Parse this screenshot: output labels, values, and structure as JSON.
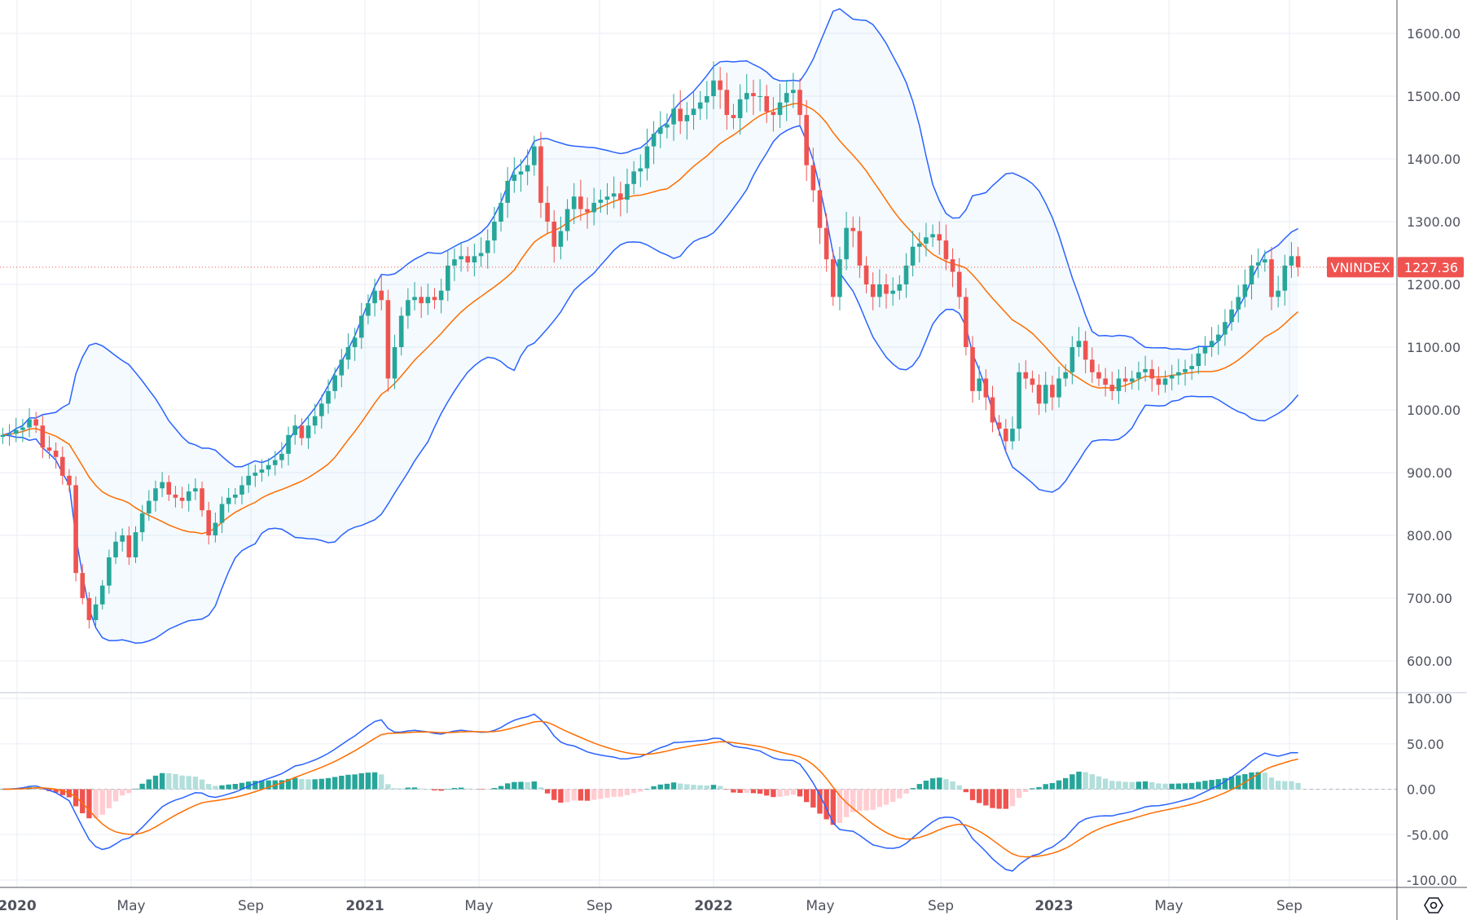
{
  "chart_data": [
    {
      "type": "candlestick",
      "symbol": "VNINDEX",
      "interval": "weekly",
      "last_price": "1227.36",
      "ylim": [
        560,
        1640
      ],
      "y_ticks": [
        "1600.00",
        "1500.00",
        "1400.00",
        "1300.00",
        "1200.00",
        "1100.00",
        "1000.00",
        "900.00",
        "800.00",
        "700.00",
        "600.00"
      ],
      "x_ticks": [
        "2020",
        "May",
        "Sep",
        "2021",
        "May",
        "Sep",
        "2022",
        "May",
        "Sep",
        "2023",
        "May",
        "Sep"
      ],
      "grid": true,
      "indicators": [
        "Bollinger Bands (20, 2)"
      ],
      "close": [
        960,
        962,
        968,
        972,
        985,
        975,
        940,
        935,
        925,
        895,
        880,
        740,
        700,
        665,
        690,
        720,
        765,
        790,
        800,
        765,
        805,
        835,
        855,
        875,
        885,
        865,
        860,
        855,
        870,
        875,
        840,
        800,
        820,
        850,
        860,
        865,
        880,
        895,
        900,
        905,
        912,
        920,
        930,
        960,
        975,
        955,
        975,
        990,
        1010,
        1030,
        1055,
        1080,
        1100,
        1115,
        1150,
        1170,
        1190,
        1175,
        1050,
        1100,
        1150,
        1175,
        1180,
        1170,
        1180,
        1175,
        1190,
        1230,
        1240,
        1245,
        1235,
        1245,
        1250,
        1270,
        1300,
        1330,
        1365,
        1375,
        1380,
        1390,
        1420,
        1330,
        1300,
        1260,
        1285,
        1320,
        1340,
        1320,
        1315,
        1330,
        1335,
        1340,
        1345,
        1335,
        1360,
        1380,
        1385,
        1420,
        1440,
        1450,
        1455,
        1480,
        1460,
        1470,
        1480,
        1490,
        1500,
        1525,
        1510,
        1470,
        1465,
        1495,
        1505,
        1500,
        1500,
        1475,
        1470,
        1490,
        1505,
        1510,
        1470,
        1390,
        1350,
        1290,
        1240,
        1180,
        1240,
        1290,
        1285,
        1230,
        1200,
        1180,
        1200,
        1185,
        1190,
        1200,
        1230,
        1260,
        1265,
        1275,
        1280,
        1270,
        1240,
        1220,
        1180,
        1100,
        1030,
        1050,
        1020,
        980,
        970,
        950,
        970,
        1060,
        1050,
        1040,
        1010,
        1040,
        1020,
        1050,
        1060,
        1100,
        1110,
        1080,
        1060,
        1050,
        1040,
        1030,
        1050,
        1045,
        1050,
        1060,
        1065,
        1050,
        1040,
        1050,
        1055,
        1060,
        1065,
        1070,
        1090,
        1100,
        1110,
        1120,
        1140,
        1160,
        1180,
        1200,
        1230,
        1235,
        1240,
        1180,
        1190,
        1230,
        1245,
        1227.36
      ],
      "colors": {
        "up": "#26a69a",
        "down": "#ef5350",
        "bands": "#2962ff",
        "basis": "#ff6d00",
        "band_fill": "#2196f3"
      }
    },
    {
      "type": "macd",
      "parameters": "12, 26, 9",
      "ylim": [
        -110,
        110
      ],
      "y_ticks": [
        "100.00",
        "50.00",
        "0.00",
        "-50.00",
        "-100.00"
      ],
      "colors": {
        "macd": "#2962ff",
        "signal": "#ff6d00",
        "hist_up_strong": "#26a69a",
        "hist_up_weak": "#b2dfdb",
        "hist_down_strong": "#ef5350",
        "hist_down_weak": "#ffcdd2"
      }
    }
  ]
}
